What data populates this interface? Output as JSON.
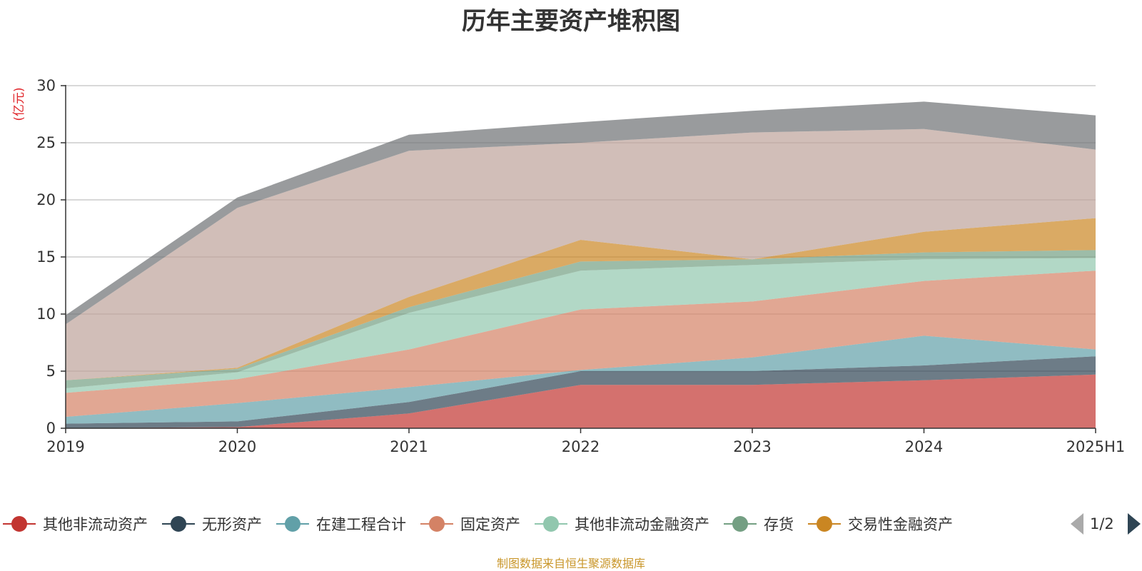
{
  "page": {
    "source_note": "制图数据来自恒生聚源数据库"
  },
  "chart_data": {
    "type": "area",
    "stacked": true,
    "title": "历年主要资产堆积图",
    "ylabel": "(亿元)",
    "ylim": [
      0,
      30
    ],
    "yticks": [
      "0",
      "5",
      "10",
      "15",
      "20",
      "25",
      "30"
    ],
    "categories": [
      "2019",
      "2020",
      "2021",
      "2022",
      "2023",
      "2024",
      "2025H1"
    ],
    "grid": true,
    "legend_position": "bottom",
    "legend_page": "1/2",
    "series": [
      {
        "name": "其他非流动资产",
        "color": "#c23531",
        "values": [
          0.0,
          0.1,
          1.3,
          3.8,
          3.8,
          4.2,
          4.7
        ]
      },
      {
        "name": "无形资产",
        "color": "#2f4554",
        "values": [
          0.4,
          0.5,
          1.0,
          1.2,
          1.2,
          1.3,
          1.6
        ]
      },
      {
        "name": "在建工程合计",
        "color": "#61a0a8",
        "values": [
          0.6,
          1.6,
          1.3,
          0.1,
          1.2,
          2.6,
          0.6
        ]
      },
      {
        "name": "固定资产",
        "color": "#d48265",
        "values": [
          2.1,
          2.1,
          3.3,
          5.3,
          4.9,
          4.8,
          6.9
        ]
      },
      {
        "name": "其他非流动金融资产",
        "color": "#91c7ae",
        "values": [
          0.4,
          0.6,
          3.2,
          3.4,
          3.2,
          1.9,
          1.1
        ]
      },
      {
        "name": "存货",
        "color": "#749f83",
        "values": [
          0.7,
          0.3,
          0.5,
          0.8,
          0.5,
          0.6,
          0.7
        ]
      },
      {
        "name": "交易性金融资产",
        "color": "#ca8622",
        "values": [
          0.0,
          0.1,
          0.9,
          1.9,
          0.0,
          1.8,
          2.8
        ]
      },
      {
        "name": "",
        "color": "#bda29a",
        "values": [
          4.9,
          14.0,
          12.8,
          8.5,
          11.1,
          9.0,
          6.0
        ]
      },
      {
        "name": "",
        "color": "#6e7074",
        "values": [
          0.8,
          0.9,
          1.4,
          1.8,
          1.9,
          2.4,
          3.0
        ]
      }
    ]
  }
}
